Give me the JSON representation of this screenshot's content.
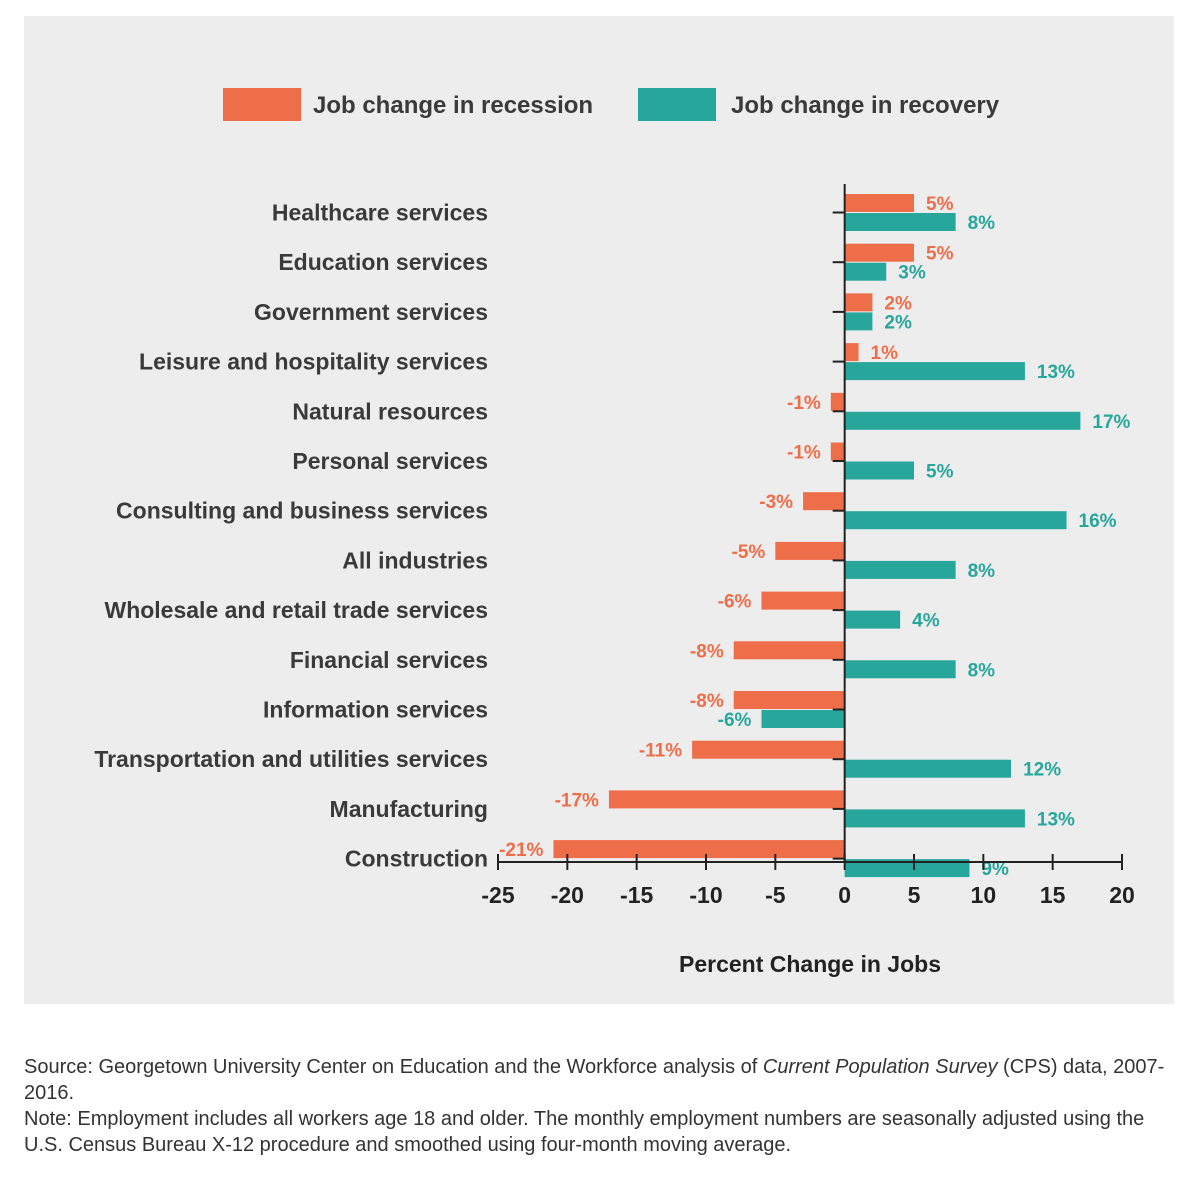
{
  "colors": {
    "recession": "#ef6e4a",
    "recovery": "#27a79b",
    "panel": "#ededee"
  },
  "chart_data": {
    "type": "bar",
    "orientation": "horizontal",
    "categories": [
      "Healthcare services",
      "Education services",
      "Government services",
      "Leisure and hospitality services",
      "Natural resources",
      "Personal services",
      "Consulting and business services",
      "All industries",
      "Wholesale and retail trade services",
      "Financial services",
      "Information services",
      "Transportation and utilities services",
      "Manufacturing",
      "Construction"
    ],
    "series": [
      {
        "name": "Job change in recession",
        "color": "#ef6e4a",
        "values": [
          5,
          5,
          2,
          1,
          -1,
          -1,
          -3,
          -5,
          -6,
          -8,
          -8,
          -11,
          -17,
          -21
        ],
        "labels": [
          "5%",
          "5%",
          "2%",
          "1%",
          "-1%",
          "-1%",
          "-3%",
          "-5%",
          "-6%",
          "-8%",
          "-8%",
          "-11%",
          "-17%",
          "-21%"
        ]
      },
      {
        "name": "Job change in recovery",
        "color": "#27a79b",
        "values": [
          8,
          3,
          2,
          13,
          17,
          5,
          16,
          8,
          4,
          8,
          -6,
          12,
          13,
          9
        ],
        "labels": [
          "8%",
          "3%",
          "2%",
          "13%",
          "17%",
          "5%",
          "16%",
          "8%",
          "4%",
          "8%",
          "-6%",
          "12%",
          "13%",
          "9%"
        ]
      }
    ],
    "xlim": [
      -25,
      20
    ],
    "xticks": [
      -25,
      -20,
      -15,
      -10,
      -5,
      0,
      5,
      10,
      15,
      20
    ],
    "xtick_labels": [
      "-25",
      "-20",
      "-15",
      "-10",
      "-5",
      "0",
      "5",
      "10",
      "15",
      "20"
    ],
    "xlabel": "Percent Change in Jobs",
    "ylabel": "",
    "legend_position": "top"
  },
  "notes": {
    "source_prefix": "Source: Georgetown University Center on Education and the Workforce analysis of ",
    "source_italic": "Current Population Survey",
    "source_suffix": " (CPS) data, 2007-2016.",
    "note": "Note: Employment includes all workers age 18 and older. The monthly employment numbers are seasonally adjusted using the U.S. Census Bureau X-12 procedure and smoothed using four-month moving average."
  }
}
